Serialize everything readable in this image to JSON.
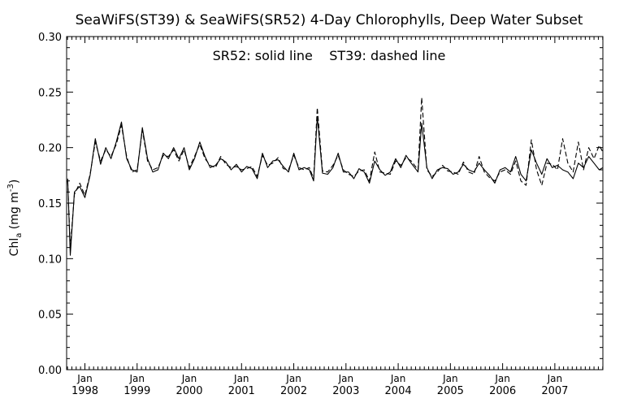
{
  "chart_data": {
    "type": "line",
    "title": "SeaWiFS(ST39) & SeaWiFS(SR52) 4-Day Chlorophylls, Deep Water Subset",
    "annotation": "SR52: solid line    ST39: dashed line",
    "ylabel": "Chl",
    "ylabel_sub": "a",
    "ylabel_unit_pre": " (mg m",
    "ylabel_unit_sup": "-3",
    "ylabel_unit_post": ")",
    "ylim": [
      0.0,
      0.3
    ],
    "yticks": [
      "0.00",
      "0.05",
      "0.10",
      "0.15",
      "0.20",
      "0.25",
      "0.30"
    ],
    "xlim": [
      1997.65,
      2007.92
    ],
    "xtick_month_label": "Jan",
    "xticks": [
      {
        "x": 1998.0,
        "label": "1998"
      },
      {
        "x": 1999.0,
        "label": "1999"
      },
      {
        "x": 2000.0,
        "label": "2000"
      },
      {
        "x": 2001.0,
        "label": "2001"
      },
      {
        "x": 2002.0,
        "label": "2002"
      },
      {
        "x": 2003.0,
        "label": "2003"
      },
      {
        "x": 2004.0,
        "label": "2004"
      },
      {
        "x": 2005.0,
        "label": "2005"
      },
      {
        "x": 2006.0,
        "label": "2006"
      },
      {
        "x": 2007.0,
        "label": "2007"
      }
    ],
    "grid": false,
    "series": [
      {
        "name": "SR52",
        "style": "solid",
        "x": [
          1997.67,
          1997.72,
          1997.8,
          1997.9,
          1998.0,
          1998.1,
          1998.2,
          1998.3,
          1998.4,
          1998.5,
          1998.6,
          1998.7,
          1998.8,
          1998.9,
          1999.0,
          1999.1,
          1999.2,
          1999.3,
          1999.4,
          1999.5,
          1999.6,
          1999.7,
          1999.8,
          1999.9,
          2000.0,
          2000.1,
          2000.2,
          2000.3,
          2000.4,
          2000.5,
          2000.6,
          2000.7,
          2000.8,
          2000.9,
          2001.0,
          2001.1,
          2001.2,
          2001.3,
          2001.4,
          2001.5,
          2001.6,
          2001.7,
          2001.8,
          2001.9,
          2002.0,
          2002.1,
          2002.2,
          2002.3,
          2002.38,
          2002.45,
          2002.55,
          2002.65,
          2002.75,
          2002.85,
          2002.95,
          2003.05,
          2003.15,
          2003.25,
          2003.35,
          2003.45,
          2003.55,
          2003.65,
          2003.75,
          2003.85,
          2003.95,
          2004.05,
          2004.15,
          2004.25,
          2004.38,
          2004.45,
          2004.55,
          2004.65,
          2004.75,
          2004.85,
          2004.95,
          2005.05,
          2005.15,
          2005.25,
          2005.35,
          2005.45,
          2005.55,
          2005.65,
          2005.75,
          2005.85,
          2005.95,
          2006.05,
          2006.15,
          2006.25,
          2006.35,
          2006.45,
          2006.55,
          2006.65,
          2006.75,
          2006.85,
          2006.95,
          2007.05,
          2007.15,
          2007.25,
          2007.35,
          2007.45,
          2007.55,
          2007.65,
          2007.75,
          2007.85,
          2007.92
        ],
        "y": [
          0.172,
          0.103,
          0.16,
          0.165,
          0.155,
          0.175,
          0.208,
          0.185,
          0.2,
          0.19,
          0.205,
          0.223,
          0.19,
          0.18,
          0.178,
          0.218,
          0.19,
          0.178,
          0.18,
          0.195,
          0.19,
          0.2,
          0.19,
          0.2,
          0.18,
          0.19,
          0.205,
          0.192,
          0.182,
          0.184,
          0.19,
          0.187,
          0.18,
          0.185,
          0.178,
          0.183,
          0.181,
          0.172,
          0.195,
          0.182,
          0.188,
          0.189,
          0.183,
          0.178,
          0.195,
          0.18,
          0.182,
          0.18,
          0.17,
          0.228,
          0.177,
          0.176,
          0.182,
          0.195,
          0.178,
          0.178,
          0.172,
          0.181,
          0.178,
          0.168,
          0.188,
          0.18,
          0.175,
          0.178,
          0.19,
          0.182,
          0.193,
          0.186,
          0.178,
          0.222,
          0.182,
          0.172,
          0.18,
          0.182,
          0.181,
          0.176,
          0.178,
          0.185,
          0.18,
          0.178,
          0.186,
          0.18,
          0.175,
          0.168,
          0.18,
          0.182,
          0.178,
          0.192,
          0.176,
          0.17,
          0.198,
          0.186,
          0.176,
          0.19,
          0.182,
          0.184,
          0.18,
          0.178,
          0.172,
          0.186,
          0.182,
          0.192,
          0.186,
          0.18,
          0.182
        ]
      },
      {
        "name": "ST39",
        "style": "dashed",
        "x": [
          1997.67,
          1997.72,
          1997.8,
          1997.9,
          1998.0,
          1998.1,
          1998.2,
          1998.3,
          1998.4,
          1998.5,
          1998.6,
          1998.7,
          1998.8,
          1998.9,
          1999.0,
          1999.1,
          1999.2,
          1999.3,
          1999.4,
          1999.5,
          1999.6,
          1999.7,
          1999.8,
          1999.9,
          2000.0,
          2000.1,
          2000.2,
          2000.3,
          2000.4,
          2000.5,
          2000.6,
          2000.7,
          2000.8,
          2000.9,
          2001.0,
          2001.1,
          2001.2,
          2001.3,
          2001.4,
          2001.5,
          2001.6,
          2001.7,
          2001.8,
          2001.9,
          2002.0,
          2002.1,
          2002.2,
          2002.3,
          2002.38,
          2002.45,
          2002.55,
          2002.65,
          2002.75,
          2002.85,
          2002.95,
          2003.05,
          2003.15,
          2003.25,
          2003.35,
          2003.45,
          2003.55,
          2003.65,
          2003.75,
          2003.85,
          2003.95,
          2004.05,
          2004.15,
          2004.25,
          2004.38,
          2004.45,
          2004.55,
          2004.65,
          2004.75,
          2004.85,
          2004.95,
          2005.05,
          2005.15,
          2005.25,
          2005.35,
          2005.45,
          2005.55,
          2005.65,
          2005.75,
          2005.85,
          2005.95,
          2006.05,
          2006.15,
          2006.25,
          2006.35,
          2006.45,
          2006.55,
          2006.65,
          2006.75,
          2006.85,
          2006.95,
          2007.05,
          2007.15,
          2007.25,
          2007.35,
          2007.45,
          2007.55,
          2007.65,
          2007.75,
          2007.85,
          2007.92
        ],
        "y": [
          0.17,
          0.11,
          0.158,
          0.168,
          0.157,
          0.176,
          0.205,
          0.188,
          0.198,
          0.192,
          0.203,
          0.22,
          0.192,
          0.178,
          0.18,
          0.216,
          0.188,
          0.18,
          0.182,
          0.193,
          0.192,
          0.198,
          0.188,
          0.198,
          0.182,
          0.192,
          0.203,
          0.19,
          0.184,
          0.182,
          0.192,
          0.185,
          0.182,
          0.183,
          0.18,
          0.181,
          0.183,
          0.174,
          0.193,
          0.184,
          0.186,
          0.191,
          0.181,
          0.18,
          0.193,
          0.182,
          0.18,
          0.182,
          0.172,
          0.236,
          0.179,
          0.178,
          0.184,
          0.193,
          0.18,
          0.176,
          0.174,
          0.179,
          0.18,
          0.17,
          0.196,
          0.178,
          0.177,
          0.176,
          0.188,
          0.184,
          0.191,
          0.188,
          0.18,
          0.245,
          0.18,
          0.174,
          0.178,
          0.184,
          0.179,
          0.178,
          0.176,
          0.187,
          0.178,
          0.176,
          0.192,
          0.178,
          0.173,
          0.17,
          0.178,
          0.18,
          0.176,
          0.188,
          0.17,
          0.166,
          0.207,
          0.18,
          0.166,
          0.186,
          0.185,
          0.18,
          0.208,
          0.186,
          0.178,
          0.205,
          0.18,
          0.2,
          0.19,
          0.202,
          0.196
        ]
      }
    ]
  }
}
